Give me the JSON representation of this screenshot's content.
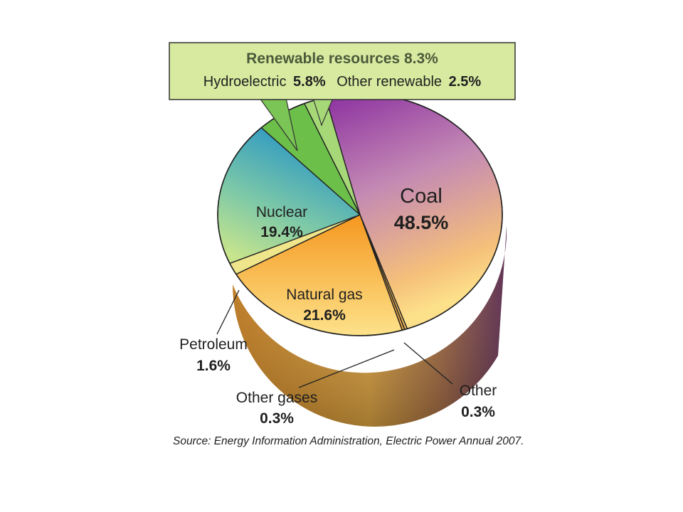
{
  "chart_data": {
    "type": "pie",
    "slices": [
      {
        "label": "Coal",
        "value": 48.5,
        "value_label": "48.5%",
        "color": "#9a3fa8"
      },
      {
        "label": "Other",
        "value": 0.3,
        "value_label": "0.3%",
        "color": "#e8b860"
      },
      {
        "label": "Other gases",
        "value": 0.3,
        "value_label": "0.3%",
        "color": "#e0a040"
      },
      {
        "label": "Natural gas",
        "value": 21.6,
        "value_label": "21.6%",
        "color": "#f5a623"
      },
      {
        "label": "Petroleum",
        "value": 1.6,
        "value_label": "1.6%",
        "color": "#efe58a"
      },
      {
        "label": "Nuclear",
        "value": 19.4,
        "value_label": "19.4%",
        "color": "#2a9fc8"
      },
      {
        "label": "Hydroelectric",
        "value": 5.8,
        "value_label": "5.8%",
        "color": "#6cc04a"
      },
      {
        "label": "Other renewable",
        "value": 2.5,
        "value_label": "2.5%",
        "color": "#a6d878"
      }
    ],
    "callout": {
      "title": "Renewable resources 8.3%",
      "hydro_label": "Hydroelectric",
      "hydro_value": "5.8%",
      "other_label": "Other renewable",
      "other_value": "2.5%",
      "background": "#d8eaa0"
    },
    "source": "Source: Energy Information Administration, Electric Power Annual 2007."
  }
}
